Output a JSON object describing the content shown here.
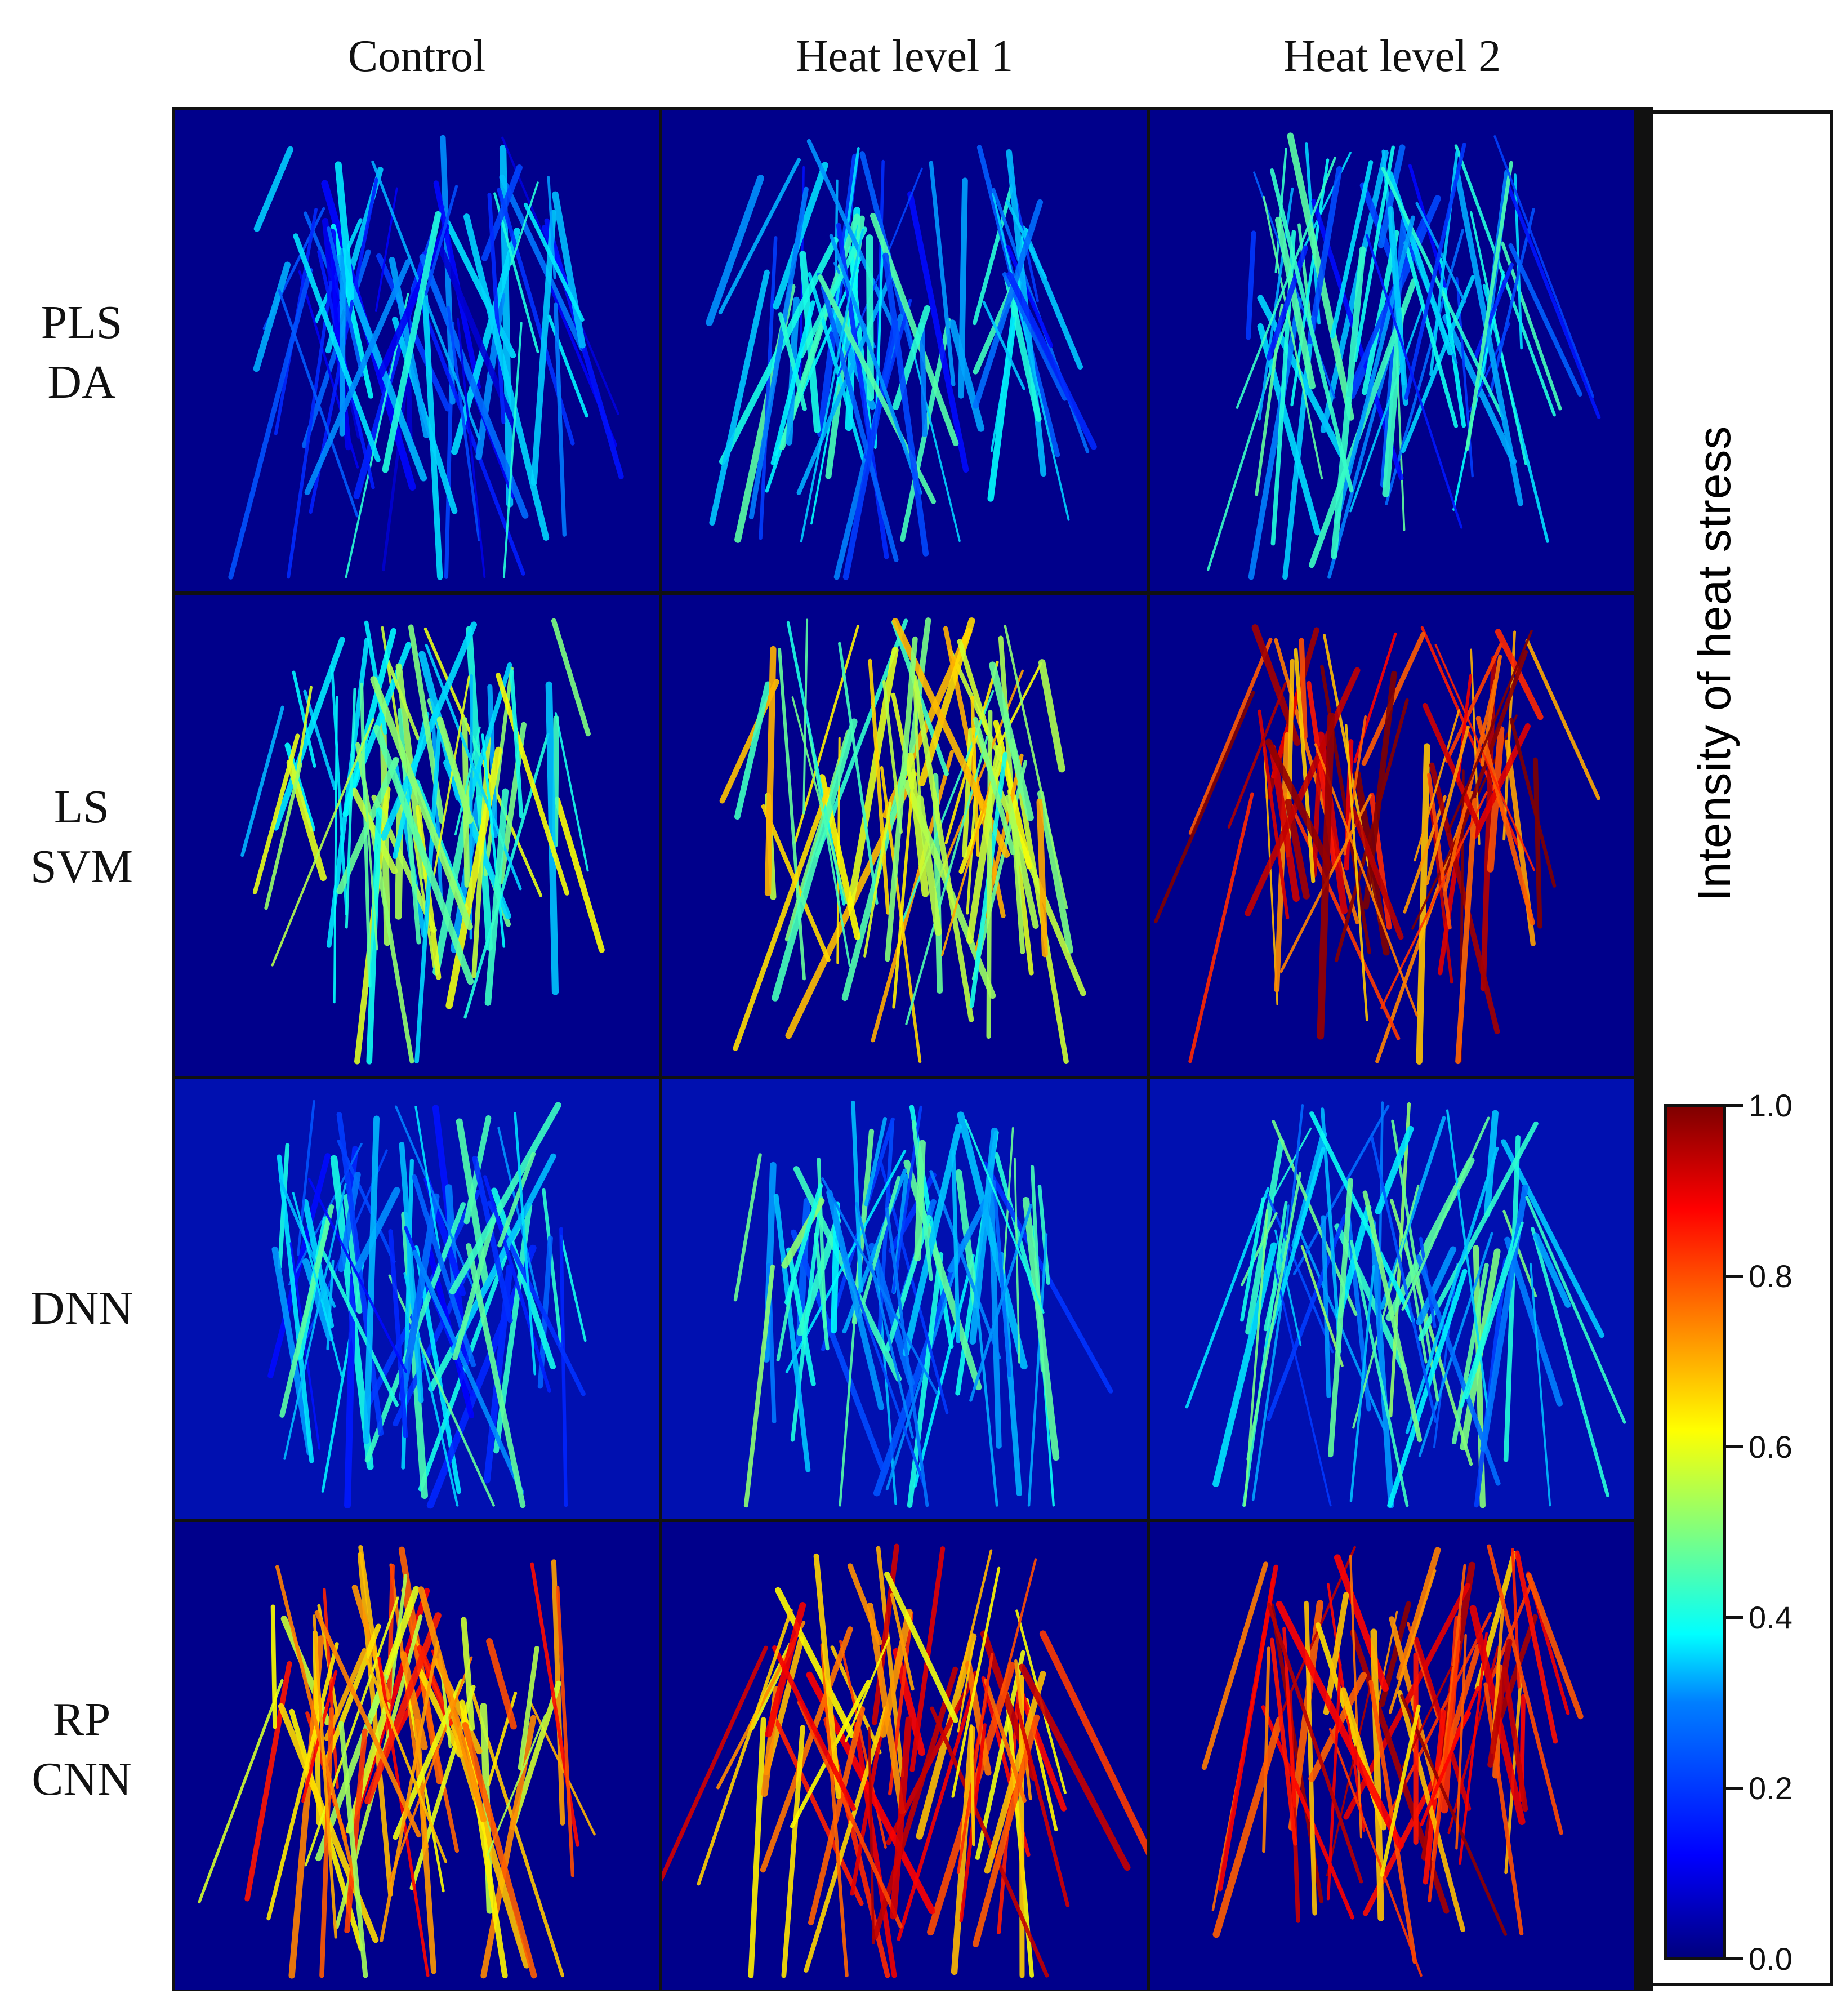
{
  "columns": [
    "Control",
    "Heat level 1",
    "Heat level 2"
  ],
  "rows": [
    {
      "line1": "PLS",
      "line2": "DA"
    },
    {
      "line1": "LS",
      "line2": "SVM"
    },
    {
      "line1": "DNN",
      "line2": ""
    },
    {
      "line1": "RP",
      "line2": "CNN"
    }
  ],
  "colorbar": {
    "title": "Intensity of  heat stress",
    "ticks": [
      "1.0",
      "0.8",
      "0.6",
      "0.4",
      "0.2",
      "0.0"
    ],
    "colormap": "jet",
    "colors": {
      "low": "#00007f",
      "mid": "#7fff7f",
      "high": "#7f0000"
    }
  },
  "panels": [
    {
      "method": "PLS DA",
      "condition": "Control",
      "stress": 0.25
    },
    {
      "method": "PLS DA",
      "condition": "Heat level 1",
      "stress": 0.3
    },
    {
      "method": "PLS DA",
      "condition": "Heat level 2",
      "stress": 0.3
    },
    {
      "method": "LS SVM",
      "condition": "Control",
      "stress": 0.45
    },
    {
      "method": "LS SVM",
      "condition": "Heat level 1",
      "stress": 0.55
    },
    {
      "method": "LS SVM",
      "condition": "Heat level 2",
      "stress": 0.85
    },
    {
      "method": "DNN",
      "condition": "Control",
      "stress": 0.3
    },
    {
      "method": "DNN",
      "condition": "Heat level 1",
      "stress": 0.35
    },
    {
      "method": "DNN",
      "condition": "Heat level 2",
      "stress": 0.35
    },
    {
      "method": "RP CNN",
      "condition": "Control",
      "stress": 0.7
    },
    {
      "method": "RP CNN",
      "condition": "Heat level 1",
      "stress": 0.78
    },
    {
      "method": "RP CNN",
      "condition": "Heat level 2",
      "stress": 0.82
    }
  ]
}
